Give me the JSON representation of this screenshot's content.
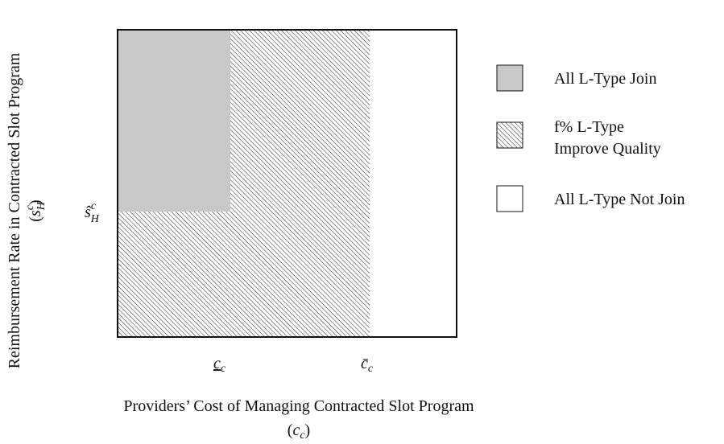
{
  "axes": {
    "x_title": "Providers’ Cost of Managing Contracted Slot Program",
    "x_symbol": {
      "open": "(",
      "base": "c",
      "sub": "c",
      "close": ")"
    },
    "y_title": "Reimbursement Rate in Contracted Slot Program",
    "y_symbol": {
      "open": "(",
      "base": "s",
      "sub": "H",
      "sup": "c",
      "close": ")"
    }
  },
  "ticks": {
    "x": [
      {
        "base": "c",
        "sub": "c"
      },
      {
        "base": "c̄",
        "sub": "c"
      }
    ],
    "y": [
      {
        "base": "ŝ",
        "sub": "H",
        "sup": "c"
      }
    ]
  },
  "legend": [
    {
      "label": "All L-Type Join"
    },
    {
      "label_lines": [
        "f% L-Type",
        "Improve Quality"
      ]
    },
    {
      "label": "All L-Type Not Join"
    }
  ]
}
